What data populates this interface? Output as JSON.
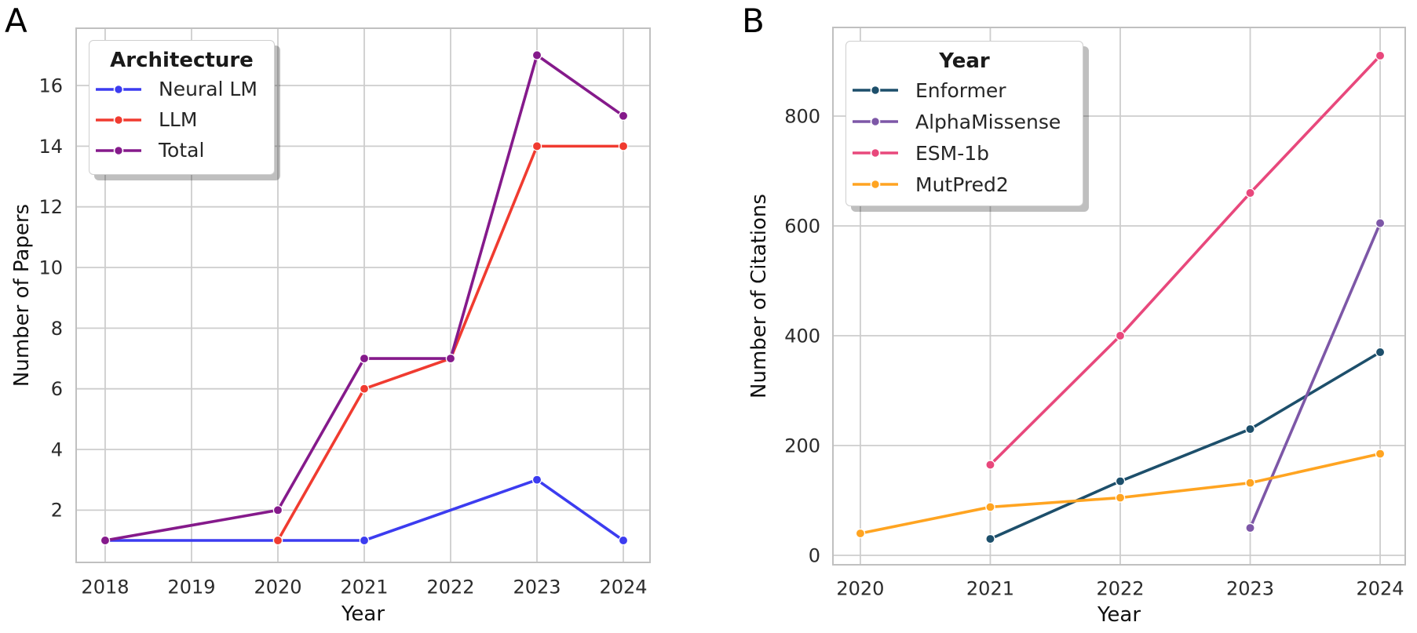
{
  "chart_data": [
    {
      "panel_label": "A",
      "type": "line",
      "xlabel": "Year",
      "ylabel": "Number of Papers",
      "x_ticks": [
        2018,
        2019,
        2020,
        2021,
        2022,
        2023,
        2024
      ],
      "y_ticks": [
        2,
        4,
        6,
        8,
        10,
        12,
        14,
        16
      ],
      "xlim": [
        2017.664,
        2024.309
      ],
      "ylim": [
        0.276,
        17.889
      ],
      "grid": true,
      "legend_position": "upper left",
      "legend": {
        "title": "Architecture"
      },
      "series": [
        {
          "name": "Neural LM",
          "color": "#3c3cf0",
          "x": [
            2018,
            2020,
            2021,
            2023,
            2024
          ],
          "y": [
            1,
            1,
            1,
            3,
            1
          ]
        },
        {
          "name": "LLM",
          "color": "#f03b30",
          "x": [
            2020,
            2021,
            2022,
            2023,
            2024
          ],
          "y": [
            1,
            6,
            7,
            14,
            14
          ]
        },
        {
          "name": "Total",
          "color": "#851a8b",
          "x": [
            2018,
            2020,
            2021,
            2022,
            2023,
            2024
          ],
          "y": [
            1,
            2,
            7,
            7,
            17,
            15
          ]
        }
      ]
    },
    {
      "panel_label": "B",
      "type": "line",
      "xlabel": "Year",
      "ylabel": "Number of Citations",
      "x_ticks": [
        2020,
        2021,
        2022,
        2023,
        2024
      ],
      "y_ticks": [
        0,
        200,
        400,
        600,
        800
      ],
      "xlim": [
        2019.789,
        2024.193
      ],
      "ylim": [
        -17.1,
        961.4
      ],
      "grid": true,
      "legend_position": "upper left",
      "legend": {
        "title": "Year"
      },
      "series": [
        {
          "name": "Enformer",
          "color": "#1d4f6b",
          "x": [
            2021,
            2022,
            2023,
            2024
          ],
          "y": [
            30,
            135,
            230,
            370
          ]
        },
        {
          "name": "AlphaMissense",
          "color": "#7d57a7",
          "x": [
            2023,
            2024
          ],
          "y": [
            50,
            605
          ]
        },
        {
          "name": "ESM-1b",
          "color": "#e8487c",
          "x": [
            2021,
            2022,
            2023,
            2024
          ],
          "y": [
            165,
            400,
            660,
            910
          ]
        },
        {
          "name": "MutPred2",
          "color": "#ffa421",
          "x": [
            2020,
            2021,
            2022,
            2023,
            2024
          ],
          "y": [
            40,
            88,
            105,
            132,
            185
          ]
        }
      ]
    }
  ],
  "style": {
    "grid_color": "#cdcdcd",
    "spine_color": "#c0c0c0",
    "tick_label_color": "#2b2b2b",
    "axis_label_color": "#111111",
    "background": "#ffffff"
  }
}
